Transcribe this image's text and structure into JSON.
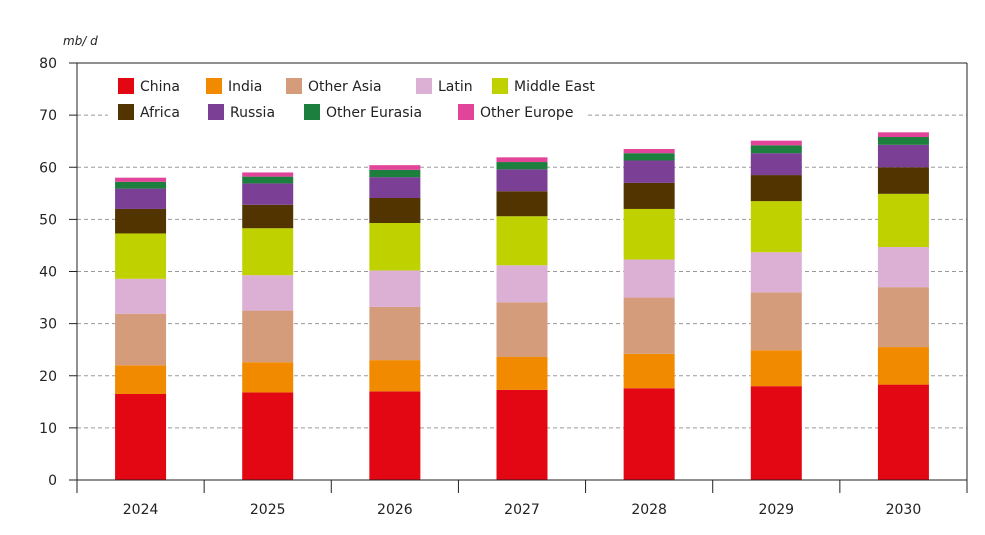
{
  "chart_data": {
    "type": "bar",
    "stacked": true,
    "unit": "mb/ d",
    "ylim": [
      0,
      80
    ],
    "yticks": [
      0,
      10,
      20,
      30,
      40,
      50,
      60,
      70,
      80
    ],
    "grid": true,
    "legend_position": "top-left",
    "categories": [
      "2024",
      "2025",
      "2026",
      "2027",
      "2028",
      "2029",
      "2030"
    ],
    "series": [
      {
        "name": "China",
        "color": "#e30613",
        "values": [
          16.5,
          16.8,
          17.0,
          17.3,
          17.6,
          18.0,
          18.3
        ]
      },
      {
        "name": "India",
        "color": "#f28a00",
        "values": [
          5.5,
          5.8,
          6.0,
          6.3,
          6.6,
          6.9,
          7.2
        ]
      },
      {
        "name": "Other Asia",
        "color": "#d59c7c",
        "values": [
          9.9,
          9.9,
          10.2,
          10.5,
          10.8,
          11.1,
          11.5
        ]
      },
      {
        "name": "Latin",
        "color": "#dcb0d4",
        "values": [
          6.7,
          6.8,
          7.0,
          7.1,
          7.3,
          7.7,
          7.7
        ]
      },
      {
        "name": "Middle East",
        "color": "#bfd200",
        "values": [
          8.7,
          9.0,
          9.1,
          9.4,
          9.7,
          9.8,
          10.2
        ]
      },
      {
        "name": "Africa",
        "color": "#513400",
        "values": [
          4.7,
          4.5,
          4.8,
          4.8,
          5.0,
          5.0,
          5.1
        ]
      },
      {
        "name": "Russia",
        "color": "#7b3f96",
        "values": [
          3.9,
          4.1,
          4.0,
          4.2,
          4.3,
          4.2,
          4.3
        ]
      },
      {
        "name": "Other Eurasia",
        "color": "#1d7f3e",
        "values": [
          1.3,
          1.3,
          1.4,
          1.4,
          1.4,
          1.5,
          1.5
        ]
      },
      {
        "name": "Other Europe",
        "color": "#e2449a",
        "values": [
          0.8,
          0.8,
          0.9,
          0.9,
          0.8,
          0.9,
          0.9
        ]
      }
    ]
  }
}
